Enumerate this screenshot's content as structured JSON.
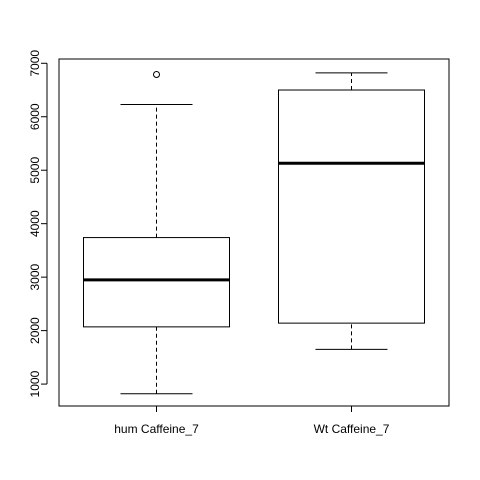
{
  "chart_data": {
    "type": "boxplot",
    "title": "",
    "xlabel": "",
    "ylabel": "",
    "categories": [
      "hum Caffeine_7",
      "Wt Caffeine_7"
    ],
    "ylim": [
      590,
      7080
    ],
    "yticks": [
      1000,
      2000,
      3000,
      4000,
      5000,
      6000,
      7000
    ],
    "ytick_labels": [
      "1000",
      "2000",
      "3000",
      "4000",
      "5000",
      "6000",
      "7000"
    ],
    "boxes": [
      {
        "name": "hum Caffeine_7",
        "whisker_low": 820,
        "q1": 2070,
        "median": 2950,
        "q3": 3740,
        "whisker_high": 6230,
        "outliers": [
          6790
        ]
      },
      {
        "name": "Wt Caffeine_7",
        "whisker_low": 1650,
        "q1": 2140,
        "median": 5130,
        "q3": 6500,
        "whisker_high": 6820,
        "outliers": []
      }
    ],
    "grid": false,
    "legend": "none"
  }
}
